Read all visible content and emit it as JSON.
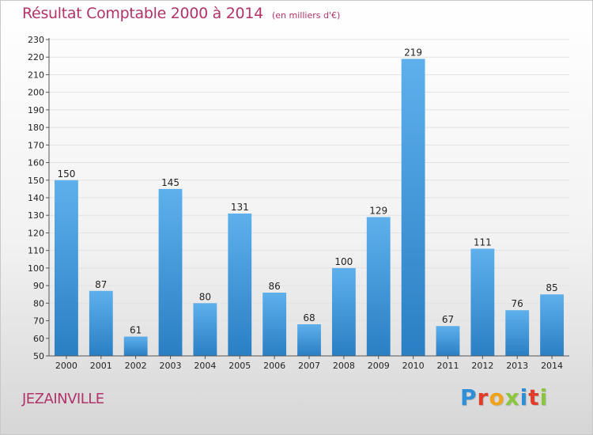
{
  "title": "Résultat Comptable 2000 à 2014",
  "subtitle": "(en milliers d'€)",
  "commune": "JEZAINVILLE",
  "logo": {
    "text": "Proxiti",
    "letters": [
      {
        "ch": "P",
        "color": "#2f8fd6"
      },
      {
        "ch": "r",
        "color": "#e23b2a"
      },
      {
        "ch": "o",
        "color": "#f2a21b"
      },
      {
        "ch": "x",
        "color": "#8cc63f"
      },
      {
        "ch": "i",
        "color": "#2f8fd6"
      },
      {
        "ch": "t",
        "color": "#e23b2a"
      },
      {
        "ch": "i",
        "color": "#8cc63f"
      }
    ]
  },
  "colors": {
    "title": "#b0336a",
    "bar_top": "#5eb0ec",
    "bar_bottom": "#2a7fc4",
    "grid": "#e2e2e2",
    "axis": "#555555",
    "text": "#222222"
  },
  "chart_data": {
    "type": "bar",
    "title": "Résultat Comptable 2000 à 2014",
    "subtitle": "(en milliers d'€)",
    "xlabel": "",
    "ylabel": "",
    "categories": [
      "2000",
      "2001",
      "2002",
      "2003",
      "2004",
      "2005",
      "2006",
      "2007",
      "2008",
      "2009",
      "2010",
      "2011",
      "2012",
      "2013",
      "2014"
    ],
    "values": [
      150,
      87,
      61,
      145,
      80,
      131,
      86,
      68,
      100,
      129,
      219,
      67,
      111,
      76,
      85
    ],
    "ylim": [
      50,
      230
    ],
    "yticks": [
      50,
      60,
      70,
      80,
      90,
      100,
      110,
      120,
      130,
      140,
      150,
      160,
      170,
      180,
      190,
      200,
      210,
      220,
      230
    ],
    "grid": true
  }
}
